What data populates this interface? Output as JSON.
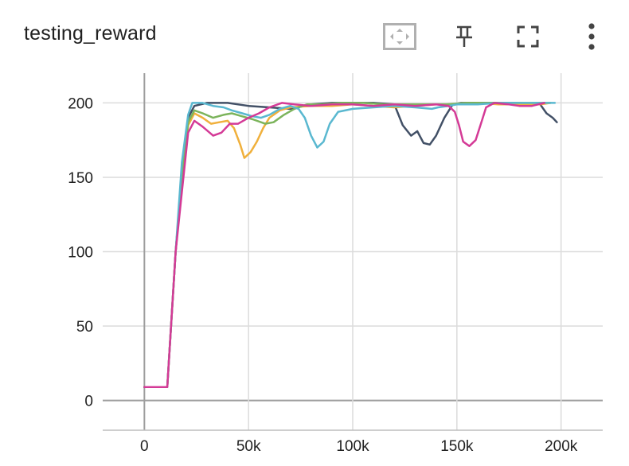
{
  "card": {
    "title": "testing_reward",
    "toolbar": [
      {
        "name": "fit-domain-button",
        "icon": "fit-to-data-icon"
      },
      {
        "name": "pin-button",
        "icon": "pin-icon"
      },
      {
        "name": "fullscreen-button",
        "icon": "fullscreen-icon"
      },
      {
        "name": "more-options-button",
        "icon": "more-vertical-icon"
      }
    ]
  },
  "chart_data": {
    "type": "line",
    "title": "testing_reward",
    "xlabel": "",
    "ylabel": "",
    "xlim": [
      -20000,
      220000
    ],
    "ylim": [
      -20,
      220
    ],
    "xticks": [
      0,
      50000,
      100000,
      150000,
      200000
    ],
    "xtick_labels": [
      "0",
      "50k",
      "100k",
      "150k",
      "200k"
    ],
    "yticks": [
      0,
      50,
      100,
      150,
      200
    ],
    "ytick_labels": [
      "0",
      "50",
      "100",
      "150",
      "200"
    ],
    "grid": true,
    "legend": "none",
    "series": [
      {
        "color": "#425066",
        "points": [
          [
            0,
            9
          ],
          [
            11000,
            9
          ],
          [
            15000,
            100
          ],
          [
            18000,
            150
          ],
          [
            21000,
            190
          ],
          [
            24000,
            198
          ],
          [
            30000,
            200
          ],
          [
            40000,
            200
          ],
          [
            50000,
            198
          ],
          [
            60000,
            197
          ],
          [
            70000,
            196
          ],
          [
            80000,
            199
          ],
          [
            90000,
            200
          ],
          [
            100000,
            200
          ],
          [
            110000,
            200
          ],
          [
            120000,
            199
          ],
          [
            124000,
            185
          ],
          [
            128000,
            178
          ],
          [
            131000,
            181
          ],
          [
            134000,
            173
          ],
          [
            137000,
            172
          ],
          [
            140000,
            178
          ],
          [
            144000,
            190
          ],
          [
            148000,
            199
          ],
          [
            152000,
            200
          ],
          [
            160000,
            200
          ],
          [
            170000,
            200
          ],
          [
            180000,
            200
          ],
          [
            190000,
            199
          ],
          [
            193000,
            193
          ],
          [
            196000,
            190
          ],
          [
            198000,
            187
          ]
        ]
      },
      {
        "color": "#f0b03c",
        "points": [
          [
            0,
            9
          ],
          [
            11000,
            9
          ],
          [
            15000,
            100
          ],
          [
            18000,
            150
          ],
          [
            21000,
            185
          ],
          [
            24000,
            193
          ],
          [
            28000,
            190
          ],
          [
            32000,
            186
          ],
          [
            36000,
            187
          ],
          [
            40000,
            188
          ],
          [
            43000,
            183
          ],
          [
            46000,
            172
          ],
          [
            48000,
            163
          ],
          [
            51000,
            167
          ],
          [
            54000,
            174
          ],
          [
            57000,
            183
          ],
          [
            60000,
            190
          ],
          [
            65000,
            195
          ],
          [
            70000,
            197
          ],
          [
            80000,
            198
          ],
          [
            90000,
            198
          ],
          [
            100000,
            199
          ],
          [
            110000,
            198
          ],
          [
            120000,
            197
          ],
          [
            130000,
            198
          ],
          [
            140000,
            199
          ],
          [
            150000,
            199
          ],
          [
            160000,
            200
          ],
          [
            170000,
            199
          ],
          [
            180000,
            199
          ],
          [
            190000,
            199
          ],
          [
            195000,
            200
          ]
        ]
      },
      {
        "color": "#7cb45c",
        "points": [
          [
            0,
            9
          ],
          [
            11000,
            9
          ],
          [
            15000,
            100
          ],
          [
            18000,
            150
          ],
          [
            21000,
            187
          ],
          [
            24000,
            195
          ],
          [
            28000,
            193
          ],
          [
            33000,
            190
          ],
          [
            38000,
            192
          ],
          [
            42000,
            193
          ],
          [
            47000,
            191
          ],
          [
            52000,
            189
          ],
          [
            58000,
            186
          ],
          [
            62000,
            187
          ],
          [
            67000,
            192
          ],
          [
            72000,
            196
          ],
          [
            78000,
            199
          ],
          [
            85000,
            199
          ],
          [
            95000,
            200
          ],
          [
            105000,
            200
          ],
          [
            115000,
            199
          ],
          [
            125000,
            199
          ],
          [
            135000,
            199
          ],
          [
            145000,
            199
          ],
          [
            155000,
            200
          ],
          [
            165000,
            200
          ],
          [
            175000,
            200
          ],
          [
            185000,
            200
          ],
          [
            195000,
            200
          ]
        ]
      },
      {
        "color": "#5ab8d0",
        "points": [
          [
            0,
            9
          ],
          [
            11000,
            9
          ],
          [
            15000,
            100
          ],
          [
            18000,
            160
          ],
          [
            21000,
            192
          ],
          [
            23000,
            200
          ],
          [
            28000,
            200
          ],
          [
            33000,
            198
          ],
          [
            38000,
            197
          ],
          [
            42000,
            195
          ],
          [
            47000,
            193
          ],
          [
            52000,
            191
          ],
          [
            56000,
            190
          ],
          [
            60000,
            192
          ],
          [
            65000,
            196
          ],
          [
            70000,
            198
          ],
          [
            74000,
            196
          ],
          [
            77000,
            190
          ],
          [
            80000,
            178
          ],
          [
            83000,
            170
          ],
          [
            86000,
            174
          ],
          [
            89000,
            186
          ],
          [
            93000,
            194
          ],
          [
            100000,
            196
          ],
          [
            110000,
            197
          ],
          [
            120000,
            198
          ],
          [
            130000,
            197
          ],
          [
            138000,
            196
          ],
          [
            141000,
            197
          ],
          [
            146000,
            198
          ],
          [
            150000,
            199
          ],
          [
            160000,
            199
          ],
          [
            170000,
            200
          ],
          [
            180000,
            200
          ],
          [
            190000,
            200
          ],
          [
            197000,
            200
          ]
        ]
      },
      {
        "color": "#d43a96",
        "points": [
          [
            0,
            9
          ],
          [
            11000,
            9
          ],
          [
            15000,
            100
          ],
          [
            18000,
            140
          ],
          [
            21000,
            180
          ],
          [
            24000,
            188
          ],
          [
            28000,
            184
          ],
          [
            33000,
            178
          ],
          [
            37000,
            180
          ],
          [
            41000,
            186
          ],
          [
            45000,
            186
          ],
          [
            50000,
            190
          ],
          [
            55000,
            193
          ],
          [
            60000,
            197
          ],
          [
            66000,
            200
          ],
          [
            72000,
            199
          ],
          [
            80000,
            198
          ],
          [
            90000,
            199
          ],
          [
            100000,
            199
          ],
          [
            110000,
            198
          ],
          [
            120000,
            199
          ],
          [
            130000,
            198
          ],
          [
            140000,
            199
          ],
          [
            146000,
            198
          ],
          [
            149000,
            194
          ],
          [
            151000,
            185
          ],
          [
            153000,
            174
          ],
          [
            156000,
            171
          ],
          [
            159000,
            175
          ],
          [
            162000,
            188
          ],
          [
            164000,
            197
          ],
          [
            168000,
            200
          ],
          [
            175000,
            199
          ],
          [
            180000,
            198
          ],
          [
            186000,
            198
          ],
          [
            192000,
            200
          ]
        ]
      }
    ]
  }
}
